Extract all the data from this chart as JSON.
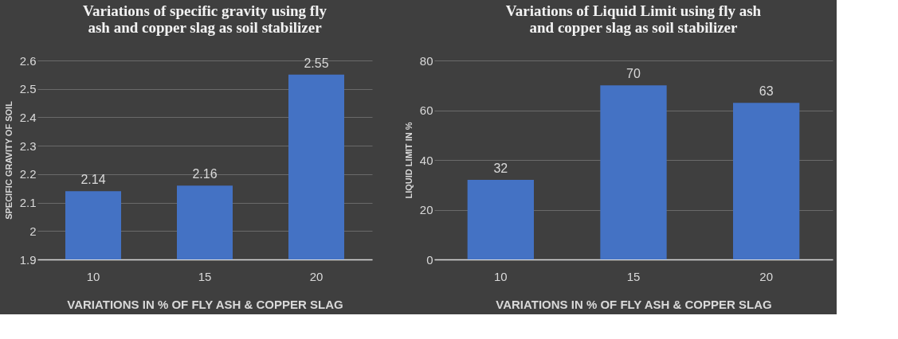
{
  "chart_data": [
    {
      "type": "bar",
      "title": "Variations of specific gravity using  fly\nash and copper slag as soil stabilizer",
      "xlabel": "VARIATIONS IN % OF FLY ASH & COPPER SLAG",
      "ylabel": "SPECIFIC GRAVITY OF SOIL",
      "categories": [
        "10",
        "15",
        "20"
      ],
      "values": [
        2.14,
        2.16,
        2.55
      ],
      "color": "#4472c4",
      "ylim": [
        1.9,
        2.6
      ],
      "yticks": [
        1.9,
        2,
        2.1,
        2.2,
        2.3,
        2.4,
        2.5,
        2.6
      ],
      "grid": "y",
      "data_labels": true
    },
    {
      "type": "bar",
      "title": "Variations of Liquid Limit using fly ash\nand copper slag as soil stabilizer",
      "xlabel": "VARIATIONS IN % OF FLY ASH & COPPER SLAG",
      "ylabel": "LIQUID LIMIT IN %",
      "categories": [
        "10",
        "15",
        "20"
      ],
      "values": [
        32,
        70,
        63
      ],
      "color": "#4472c4",
      "ylim": [
        0,
        80
      ],
      "yticks": [
        0,
        20,
        40,
        60,
        80
      ],
      "grid": "y",
      "data_labels": true
    }
  ]
}
